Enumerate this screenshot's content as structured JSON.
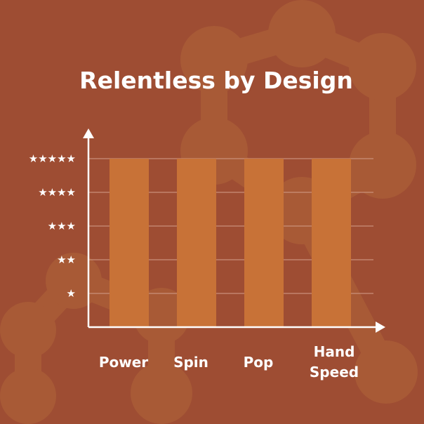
{
  "chart_data": {
    "type": "bar",
    "title": "Relentless by Design",
    "categories": [
      [
        "Power"
      ],
      [
        "Spin"
      ],
      [
        "Pop"
      ],
      [
        "Hand",
        "Speed"
      ]
    ],
    "values": [
      5,
      5,
      5,
      5
    ],
    "ylim": [
      0,
      5
    ],
    "yticks": [
      {
        "value": 1,
        "label": "★"
      },
      {
        "value": 2,
        "label": "★★"
      },
      {
        "value": 3,
        "label": "★★★"
      },
      {
        "value": 4,
        "label": "★★★★"
      },
      {
        "value": 5,
        "label": "★★★★★"
      }
    ],
    "grid": true,
    "xlabel": "",
    "ylabel": ""
  },
  "colors": {
    "background": "#9e4d33",
    "pattern": "#a85a36",
    "bar": "#c87237",
    "grid": "#c9907a",
    "axis": "#ffffff"
  }
}
